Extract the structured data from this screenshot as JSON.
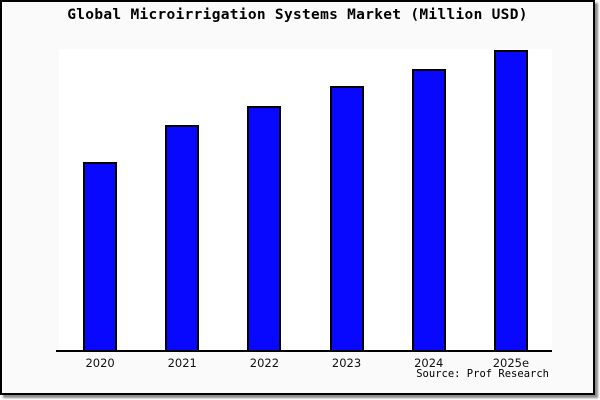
{
  "frame": {
    "background": "#fafafa",
    "border_color": "#000000"
  },
  "chart_data": {
    "type": "bar",
    "title": "Global Microirrigation Systems Market (Million USD)",
    "categories": [
      "2020",
      "2021",
      "2022",
      "2023",
      "2024",
      "2025e"
    ],
    "values": [
      62.6,
      74.9,
      81.2,
      87.6,
      93.5,
      99.8
    ],
    "values_note": "relative bar heights as % of plot height; chart shows no numeric y-axis labels",
    "xlabel": "",
    "ylabel": "",
    "ylim": [
      0,
      100
    ],
    "grid": false,
    "legend": false,
    "y_axis_labels_visible": false,
    "bar_color": "#0808FF",
    "bar_border_color": "#000000",
    "plot_background": "#ffffff",
    "axis_color": "#000000"
  },
  "source": {
    "label": "Source: Prof Research"
  }
}
